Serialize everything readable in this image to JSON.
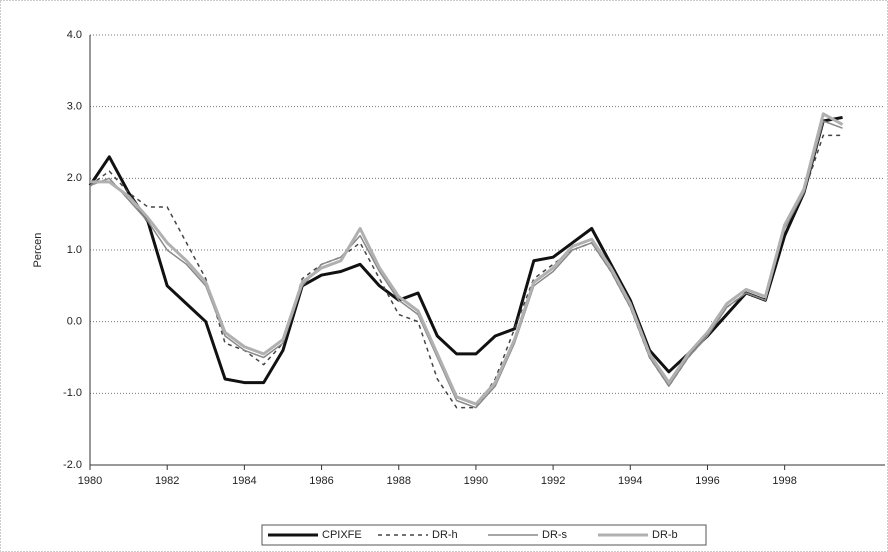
{
  "chart_data": {
    "type": "line",
    "y_label": "Percen",
    "x": [
      1980,
      1980.5,
      1981,
      1981.5,
      1982,
      1982.5,
      1983,
      1983.5,
      1984,
      1984.5,
      1985,
      1985.5,
      1986,
      1986.5,
      1987,
      1987.5,
      1988,
      1988.5,
      1989,
      1989.5,
      1990,
      1990.5,
      1991,
      1991.5,
      1992,
      1992.5,
      1993,
      1993.5,
      1994,
      1994.5,
      1995,
      1995.5,
      1996,
      1996.5,
      1997,
      1997.5,
      1998,
      1998.5,
      1999,
      1999.5
    ],
    "series": [
      {
        "name": "CPIXFE",
        "color": "#111111",
        "line_style": "solid",
        "values": [
          1.9,
          2.3,
          1.8,
          1.4,
          0.5,
          0.25,
          0.0,
          -0.8,
          -0.85,
          -0.85,
          -0.4,
          0.5,
          0.65,
          0.7,
          0.8,
          0.5,
          0.3,
          0.4,
          -0.2,
          -0.45,
          -0.45,
          -0.2,
          -0.1,
          0.85,
          0.9,
          1.1,
          1.3,
          0.8,
          0.3,
          -0.4,
          -0.7,
          -0.45,
          -0.2,
          0.1,
          0.4,
          0.3,
          1.2,
          1.8,
          2.8,
          2.85
        ]
      },
      {
        "name": "DR-h",
        "color": "#444444",
        "line_style": "dashed",
        "values": [
          1.9,
          2.1,
          1.8,
          1.6,
          1.6,
          1.1,
          0.6,
          -0.3,
          -0.4,
          -0.6,
          -0.3,
          0.6,
          0.8,
          0.9,
          1.1,
          0.6,
          0.1,
          0.0,
          -0.8,
          -1.2,
          -1.2,
          -0.8,
          -0.1,
          0.6,
          0.8,
          1.0,
          1.1,
          0.7,
          0.2,
          -0.5,
          -0.9,
          -0.5,
          -0.2,
          0.2,
          0.4,
          0.3,
          1.3,
          1.8,
          2.6,
          2.6
        ]
      },
      {
        "name": "DR-s",
        "color": "#888888",
        "line_style": "solid",
        "values": [
          1.9,
          2.0,
          1.7,
          1.4,
          1.0,
          0.8,
          0.5,
          -0.2,
          -0.4,
          -0.5,
          -0.3,
          0.5,
          0.8,
          0.9,
          1.2,
          0.7,
          0.3,
          0.1,
          -0.5,
          -1.1,
          -1.2,
          -0.9,
          -0.3,
          0.5,
          0.7,
          1.0,
          1.1,
          0.7,
          0.2,
          -0.5,
          -0.9,
          -0.5,
          -0.2,
          0.2,
          0.4,
          0.3,
          1.3,
          1.8,
          2.8,
          2.7
        ]
      },
      {
        "name": "DR-b",
        "color": "#b0b0b0",
        "line_style": "solid",
        "values": [
          1.95,
          1.95,
          1.75,
          1.45,
          1.1,
          0.85,
          0.55,
          -0.15,
          -0.35,
          -0.45,
          -0.25,
          0.55,
          0.75,
          0.85,
          1.3,
          0.75,
          0.35,
          0.15,
          -0.45,
          -1.05,
          -1.15,
          -0.85,
          -0.25,
          0.55,
          0.75,
          1.05,
          1.15,
          0.75,
          0.25,
          -0.45,
          -0.85,
          -0.45,
          -0.15,
          0.25,
          0.45,
          0.35,
          1.35,
          1.85,
          2.9,
          2.75
        ]
      }
    ],
    "xlim": [
      1980,
      2000.6
    ],
    "xticks": [
      1980,
      1982,
      1984,
      1986,
      1988,
      1990,
      1992,
      1994,
      1996,
      1998
    ],
    "ylim": [
      -2,
      4
    ],
    "yticks": [
      {
        "value": -2,
        "label": "-2.0"
      },
      {
        "value": -1,
        "label": "-1.0"
      },
      {
        "value": 0,
        "label": "0.0"
      },
      {
        "value": 1,
        "label": "1.0"
      },
      {
        "value": 2,
        "label": "2.0"
      },
      {
        "value": 3,
        "label": "3.0"
      },
      {
        "value": 4,
        "label": "4.0"
      }
    ],
    "grid": true,
    "legend": "bottom"
  }
}
